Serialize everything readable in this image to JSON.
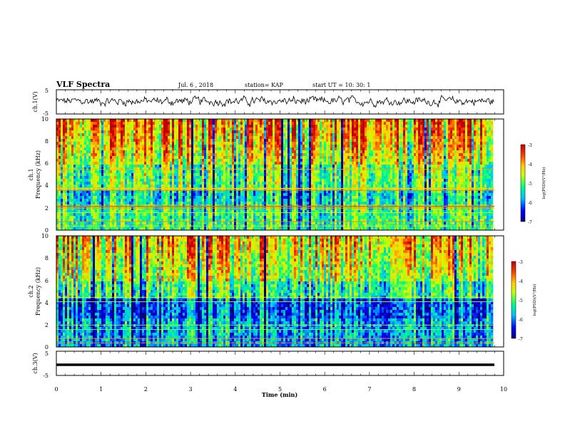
{
  "header": {
    "title": "VLF Spectra",
    "date": "Jul. 6 , 2018",
    "station": "station= KAP",
    "start": "start UT = 10: 30: 1"
  },
  "chart_data": [
    {
      "type": "line",
      "panel": "waveform-ch1",
      "ylabel": "ch.1(V)",
      "ylim": [
        -5,
        5
      ],
      "yticks": [
        "5",
        "-5"
      ],
      "xlim": [
        0,
        10
      ],
      "series": [
        {
          "values": "noisy waveform roughly between -2 and 3 V over 0–9.8 min"
        }
      ]
    },
    {
      "type": "heatmap",
      "panel": "spectrogram-ch1",
      "ylabel_top": "ch.1",
      "ylabel": "Frequency (kHz)",
      "ylim": [
        0,
        10
      ],
      "yticks": [
        "0",
        "2",
        "4",
        "6",
        "8",
        "10"
      ],
      "xlim": [
        0,
        10
      ],
      "colorbar": {
        "label": "log(PSD)(V²/Hz)",
        "range": [
          -7,
          -3
        ],
        "ticks": [
          "-3",
          "-4",
          "-5",
          "-6",
          "-7"
        ]
      }
    },
    {
      "type": "heatmap",
      "panel": "spectrogram-ch2",
      "ylabel_top": "ch.2",
      "ylabel": "Frequency (kHz)",
      "ylim": [
        0,
        10
      ],
      "yticks": [
        "0",
        "2",
        "4",
        "6",
        "8",
        "10"
      ],
      "xlim": [
        0,
        10
      ],
      "colorbar": {
        "label": "log(PSD)(V²/Hz)",
        "range": [
          -7,
          -3
        ],
        "ticks": [
          "-3",
          "-4",
          "-5",
          "-6",
          "-7"
        ]
      }
    },
    {
      "type": "line",
      "panel": "waveform-ch3",
      "ylabel": "ch.3(V)",
      "ylim": [
        -5,
        5
      ],
      "yticks": [
        "5",
        "-5"
      ],
      "xlim": [
        0,
        10
      ],
      "series": [
        {
          "values": "flat signal at about -1 V over 0–9.8 min"
        }
      ]
    }
  ],
  "xaxis": {
    "label": "Time (min)",
    "ticks": [
      "0",
      "1",
      "2",
      "3",
      "4",
      "5",
      "6",
      "7",
      "8",
      "9",
      "10"
    ]
  },
  "colors": {
    "scale": [
      "#00007f",
      "#0000ff",
      "#00bfff",
      "#00ff80",
      "#c8ff00",
      "#ffd000",
      "#ff4000",
      "#c00000"
    ]
  }
}
